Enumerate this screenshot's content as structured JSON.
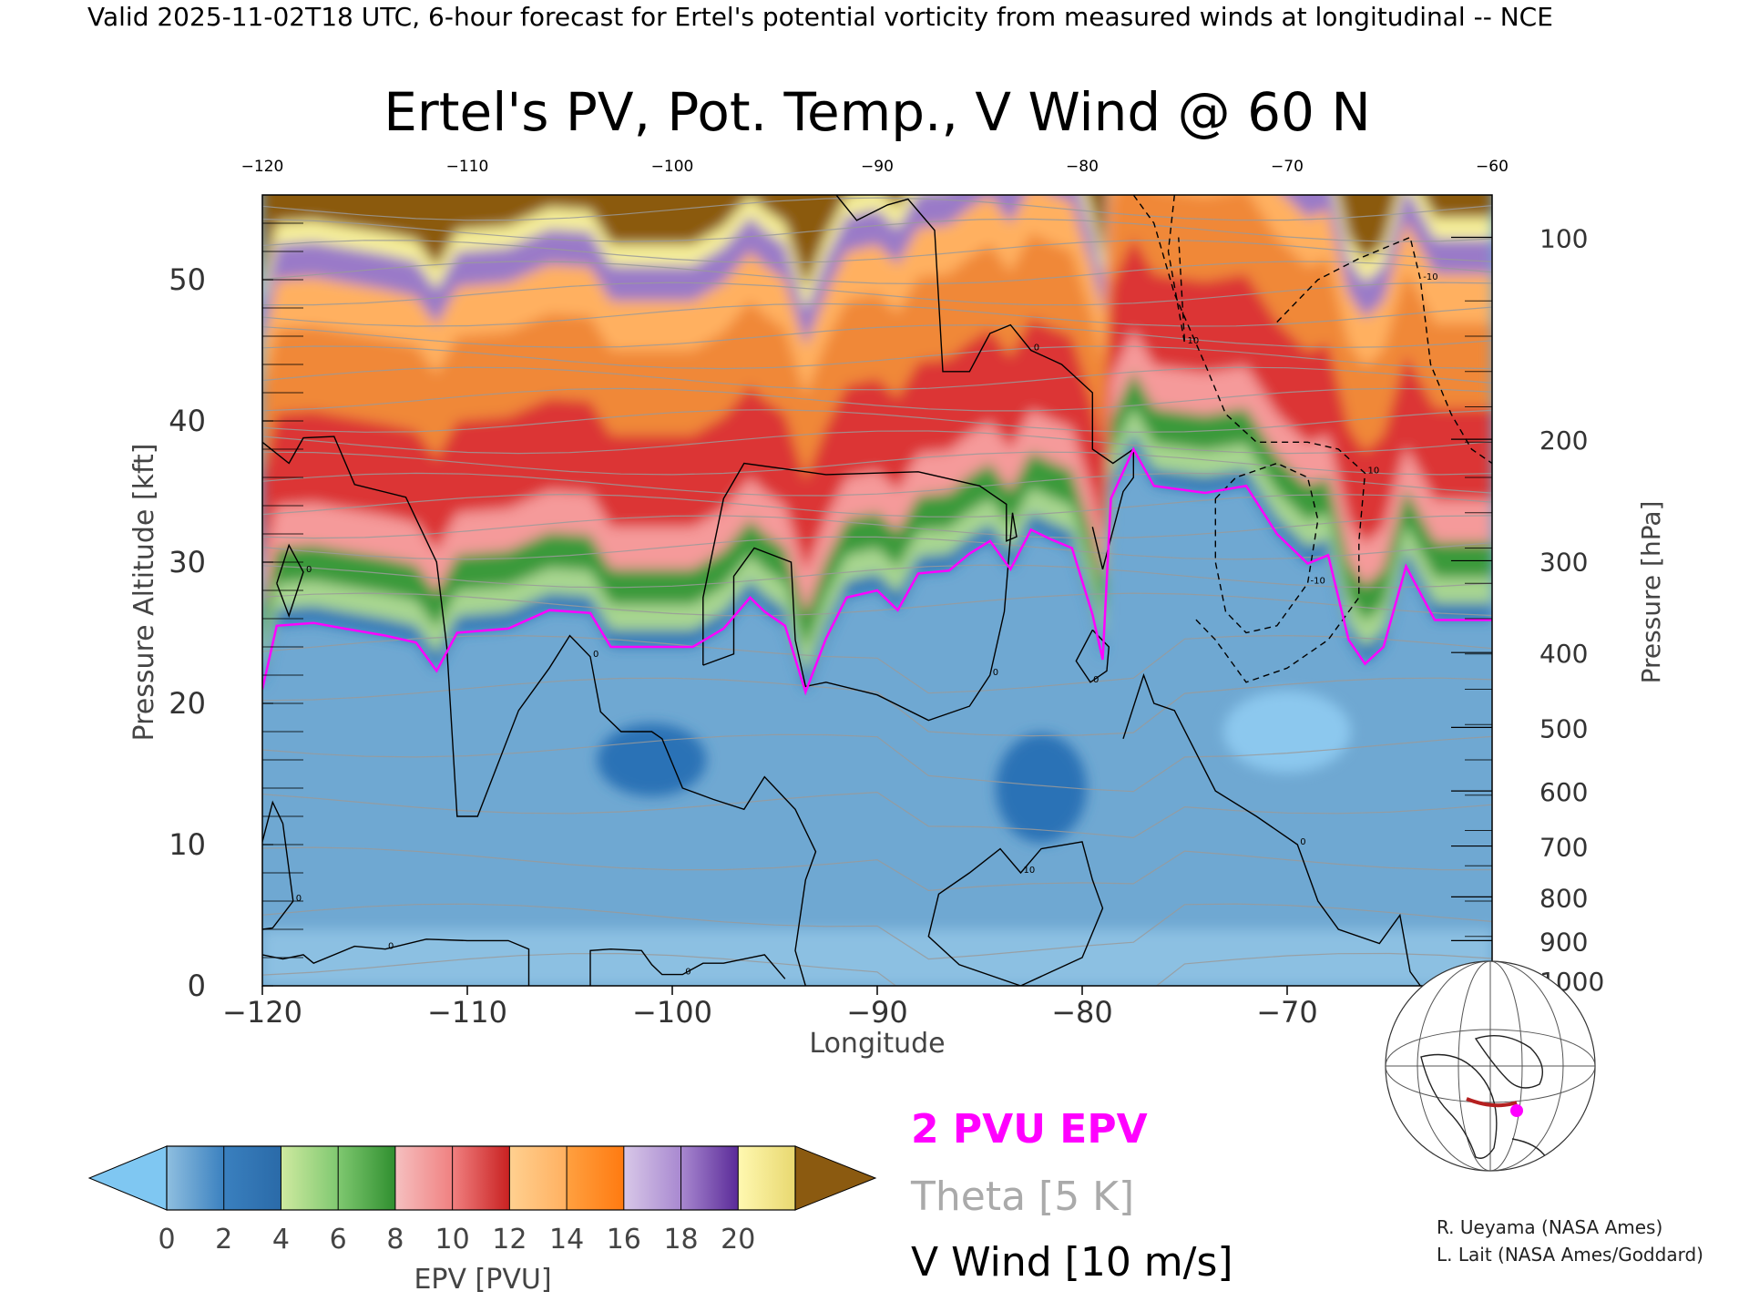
{
  "header_text": "Valid 2025-11-02T18 UTC, 6-hour forecast for Ertel's potential vorticity from measured winds at longitudinal -- NCE",
  "chart_data": {
    "type": "heatmap",
    "title": "Ertel's PV, Pot. Temp., V Wind @ 60 N",
    "xlabel": "Longitude",
    "ylabel_left": "Pressure Altitude [kft]",
    "ylabel_right": "Pressure [hPa]",
    "xlim": [
      -120,
      -60
    ],
    "ylim_kft": [
      0,
      56
    ],
    "x_ticks": [
      "-120",
      "-110",
      "-100",
      "-90",
      "-80",
      "-70",
      "-60"
    ],
    "x_top_ticks": [
      "-120",
      "-110",
      "-100",
      "-90",
      "-80",
      "-70",
      "-60"
    ],
    "y_left_ticks": [
      "0",
      "10",
      "20",
      "30",
      "40",
      "50"
    ],
    "y_right_ticks": [
      {
        "label": "100",
        "kft": 53
      },
      {
        "label": "200",
        "kft": 38.7
      },
      {
        "label": "300",
        "kft": 30.1
      },
      {
        "label": "400",
        "kft": 23.6
      },
      {
        "label": "500",
        "kft": 18.3
      },
      {
        "label": "600",
        "kft": 13.8
      },
      {
        "label": "700",
        "kft": 9.9
      },
      {
        "label": "800",
        "kft": 6.3
      },
      {
        "label": "900",
        "kft": 3.2
      },
      {
        "label": "1000",
        "kft": 0.4
      }
    ],
    "colorbar": {
      "label": "EPV [PVU]",
      "ticks": [
        "0",
        "2",
        "4",
        "6",
        "8",
        "10",
        "12",
        "14",
        "16",
        "18",
        "20"
      ],
      "under_color": "#7fc7f2",
      "over_color": "#8b5a10",
      "colors": [
        "#8fbfe0",
        "#3a80bf",
        "#9fd08a",
        "#3a9a3a",
        "#f5a0a0",
        "#d83030",
        "#ffb060",
        "#ff8a20",
        "#c0a8d8",
        "#6a3aa8",
        "#f7f09a"
      ]
    },
    "tropopause_2pvu_kft": [
      [
        -120,
        21
      ],
      [
        -119.3,
        25.5
      ],
      [
        -117.5,
        25.7
      ],
      [
        -116,
        25.3
      ],
      [
        -114,
        24.8
      ],
      [
        -112.5,
        24.3
      ],
      [
        -111.5,
        22.3
      ],
      [
        -110.5,
        25.0
      ],
      [
        -108,
        25.3
      ],
      [
        -106,
        26.6
      ],
      [
        -104,
        26.4
      ],
      [
        -103,
        24.0
      ],
      [
        -99,
        24.0
      ],
      [
        -97.5,
        25.3
      ],
      [
        -96.2,
        27.5
      ],
      [
        -95.5,
        26.5
      ],
      [
        -94.5,
        25.5
      ],
      [
        -93.5,
        20.8
      ],
      [
        -92.5,
        24.6
      ],
      [
        -91.5,
        27.5
      ],
      [
        -90,
        28.0
      ],
      [
        -89,
        26.6
      ],
      [
        -88,
        29.2
      ],
      [
        -86.5,
        29.4
      ],
      [
        -85.5,
        30.6
      ],
      [
        -84.5,
        31.5
      ],
      [
        -83.5,
        29.5
      ],
      [
        -82.5,
        32.3
      ],
      [
        -81.5,
        31.6
      ],
      [
        -80.5,
        31.0
      ],
      [
        -79.5,
        26.3
      ],
      [
        -79,
        23.1
      ],
      [
        -78.6,
        34.5
      ],
      [
        -77.5,
        38.0
      ],
      [
        -76.5,
        35.4
      ],
      [
        -74,
        34.9
      ],
      [
        -72,
        35.4
      ],
      [
        -70.5,
        32.0
      ],
      [
        -69,
        29.9
      ],
      [
        -68,
        30.5
      ],
      [
        -67,
        24.5
      ],
      [
        -66.2,
        22.8
      ],
      [
        -65.3,
        24.0
      ],
      [
        -64.2,
        29.7
      ],
      [
        -62.8,
        25.9
      ],
      [
        -60,
        25.9
      ]
    ],
    "wind_contours": [
      {
        "label": "0",
        "style": "solid",
        "points": [
          [
            -120,
            38.5
          ],
          [
            -118.7,
            37
          ],
          [
            -118,
            38.8
          ],
          [
            -116.5,
            38.9
          ],
          [
            -115.5,
            35.5
          ],
          [
            -113,
            34.6
          ],
          [
            -111.5,
            30
          ],
          [
            -111,
            24
          ],
          [
            -110.5,
            12
          ],
          [
            -109.5,
            12
          ],
          [
            -107.5,
            19.5
          ],
          [
            -106,
            22.5
          ],
          [
            -105,
            24.8
          ],
          [
            -104,
            23.3
          ],
          [
            -103.5,
            19.4
          ],
          [
            -102.5,
            18
          ],
          [
            -101,
            18
          ],
          [
            -100.5,
            17.5
          ],
          [
            -99.5,
            14
          ],
          [
            -98,
            13.2
          ],
          [
            -96.5,
            12.5
          ],
          [
            -95.5,
            14.8
          ],
          [
            -94,
            12.5
          ],
          [
            -93,
            9.5
          ],
          [
            -93.5,
            7.5
          ],
          [
            -94,
            2.5
          ],
          [
            -93.5,
            0
          ]
        ]
      },
      {
        "label": "0",
        "style": "solid",
        "points": [
          [
            -98.5,
            22.7
          ],
          [
            -98.5,
            27.5
          ],
          [
            -97.5,
            34.5
          ],
          [
            -96.5,
            37
          ],
          [
            -92.5,
            36.2
          ],
          [
            -88,
            36.4
          ],
          [
            -85,
            35.4
          ],
          [
            -83.7,
            34.1
          ],
          [
            -83.7,
            31.5
          ],
          [
            -83.2,
            31.8
          ],
          [
            -83.4,
            33.5
          ],
          [
            -83.8,
            26.5
          ],
          [
            -84.5,
            22
          ],
          [
            -85.5,
            19.8
          ],
          [
            -87.5,
            18.8
          ],
          [
            -90,
            20.6
          ],
          [
            -92.5,
            21.5
          ],
          [
            -93.5,
            21.2
          ],
          [
            -94,
            24.5
          ],
          [
            -94.2,
            30
          ],
          [
            -96,
            31
          ],
          [
            -97,
            29
          ],
          [
            -97,
            23.5
          ],
          [
            -98.5,
            22.7
          ]
        ]
      },
      {
        "label": "0",
        "style": "solid",
        "points": [
          [
            -92,
            56
          ],
          [
            -91,
            54.2
          ],
          [
            -89.5,
            55.3
          ],
          [
            -88.5,
            55.7
          ],
          [
            -87.2,
            53.5
          ],
          [
            -86.8,
            43.5
          ],
          [
            -85.5,
            43.5
          ],
          [
            -84.5,
            46.2
          ],
          [
            -83.5,
            46.8
          ],
          [
            -82.5,
            45
          ],
          [
            -81,
            44
          ],
          [
            -79.5,
            42
          ],
          [
            -79.5,
            38
          ],
          [
            -78.5,
            37
          ],
          [
            -77.5,
            38
          ],
          [
            -77.5,
            36
          ],
          [
            -78,
            35
          ],
          [
            -79,
            29.5
          ],
          [
            -79.5,
            32.5
          ]
        ]
      },
      {
        "label": "0",
        "style": "solid",
        "points": [
          [
            -78,
            17.5
          ],
          [
            -77,
            22
          ],
          [
            -76.5,
            20
          ],
          [
            -75.5,
            19.5
          ],
          [
            -73.5,
            13.8
          ],
          [
            -71.5,
            12
          ],
          [
            -69.5,
            10
          ],
          [
            -68.5,
            6
          ],
          [
            -67.5,
            4
          ],
          [
            -65.5,
            3
          ],
          [
            -64.5,
            5
          ],
          [
            -64,
            1
          ],
          [
            -63.5,
            0
          ]
        ]
      },
      {
        "label": "0",
        "style": "solid",
        "points": [
          [
            -79.5,
            25.2
          ],
          [
            -78.7,
            24
          ],
          [
            -78.8,
            22.3
          ],
          [
            -79.6,
            21.5
          ],
          [
            -80.3,
            23
          ],
          [
            -79.5,
            25.2
          ]
        ]
      },
      {
        "label": "0",
        "style": "solid",
        "points": [
          [
            -120,
            2.2
          ],
          [
            -119,
            1.9
          ],
          [
            -118,
            2.2
          ],
          [
            -117.5,
            1.6
          ],
          [
            -115.5,
            2.8
          ],
          [
            -114,
            2.6
          ],
          [
            -112,
            3.3
          ],
          [
            -110,
            3.2
          ],
          [
            -108,
            3.2
          ],
          [
            -107,
            2.6
          ],
          [
            -107,
            0
          ]
        ]
      },
      {
        "label": "0",
        "style": "solid",
        "points": [
          [
            -104,
            0
          ],
          [
            -104,
            2.5
          ],
          [
            -103,
            2.6
          ],
          [
            -101.5,
            2.5
          ],
          [
            -101,
            1.5
          ],
          [
            -100.5,
            0.8
          ],
          [
            -99.5,
            0.8
          ],
          [
            -99,
            1.2
          ],
          [
            -98.5,
            1.6
          ],
          [
            -97.5,
            1.6
          ],
          [
            -95.5,
            2.2
          ],
          [
            -94.5,
            0.5
          ]
        ]
      },
      {
        "label": "0",
        "style": "solid",
        "points": [
          [
            -120,
            10.2
          ],
          [
            -119.5,
            13
          ],
          [
            -119,
            11.5
          ],
          [
            -118.5,
            6
          ],
          [
            -119.5,
            4.1
          ],
          [
            -120,
            4
          ]
        ]
      },
      {
        "label": "0",
        "style": "solid",
        "points": [
          [
            -119.3,
            28.5
          ],
          [
            -118.7,
            31.2
          ],
          [
            -118,
            29.3
          ],
          [
            -118.7,
            26.2
          ],
          [
            -119.3,
            28.5
          ]
        ]
      },
      {
        "label": "10",
        "style": "solid",
        "points": [
          [
            -83,
            0
          ],
          [
            -86,
            1.5
          ],
          [
            -87.5,
            3.5
          ],
          [
            -87,
            6.5
          ],
          [
            -85.5,
            8
          ],
          [
            -84,
            9.7
          ],
          [
            -83,
            8
          ],
          [
            -82,
            9.7
          ],
          [
            -80,
            10.2
          ],
          [
            -79.5,
            7.5
          ],
          [
            -79,
            5.5
          ],
          [
            -80,
            2
          ],
          [
            -83,
            0
          ]
        ]
      },
      {
        "label": "10",
        "style": "dashed",
        "points": [
          [
            -77.5,
            56
          ],
          [
            -76.5,
            54
          ],
          [
            -75.5,
            49
          ],
          [
            -74,
            44
          ],
          [
            -73,
            40.5
          ],
          [
            -71.5,
            38.5
          ],
          [
            -69,
            38.5
          ],
          [
            -67.5,
            38
          ],
          [
            -66.2,
            36.3
          ],
          [
            -66.5,
            31.5
          ],
          [
            -66.5,
            27.5
          ],
          [
            -68,
            24.5
          ],
          [
            -70,
            22.5
          ],
          [
            -72,
            21.5
          ],
          [
            -73.5,
            24.5
          ],
          [
            -74.5,
            26
          ]
        ]
      },
      {
        "label": "-10",
        "style": "dashed",
        "points": [
          [
            -73.5,
            34.5
          ],
          [
            -72.5,
            36
          ],
          [
            -70.5,
            37
          ],
          [
            -69,
            36
          ],
          [
            -68.5,
            33
          ],
          [
            -69,
            28.5
          ],
          [
            -70.5,
            25.5
          ],
          [
            -72,
            25
          ],
          [
            -73,
            26.5
          ],
          [
            -73.5,
            30
          ],
          [
            -73.5,
            34.5
          ]
        ]
      },
      {
        "label": "-10",
        "style": "dashed",
        "points": [
          [
            -70.5,
            47
          ],
          [
            -68.5,
            50
          ],
          [
            -66.5,
            51.5
          ],
          [
            -64,
            53
          ],
          [
            -63.5,
            50
          ],
          [
            -63,
            44
          ],
          [
            -62,
            40.5
          ],
          [
            -61,
            38
          ],
          [
            -60,
            37
          ]
        ]
      },
      {
        "label": "10",
        "style": "dashed",
        "points": [
          [
            -75.5,
            56
          ],
          [
            -75.8,
            52
          ],
          [
            -75,
            45.5
          ],
          [
            -75.3,
            53
          ]
        ]
      }
    ],
    "theta_levels_K": [
      "290",
      "300",
      "320",
      "340",
      "360",
      "370",
      "380",
      "390",
      "400"
    ]
  },
  "legend": {
    "epv_label": "2 PVU EPV",
    "epv_color": "#ff00ff",
    "theta_label": "Theta [5 K]",
    "theta_color": "#aaaaaa",
    "wind_label": "V Wind [10 m/s]",
    "wind_color": "#000000"
  },
  "inset_map": {
    "description_icon": "globe-map-icon",
    "track_color": "#b52020",
    "marker_color": "#ff00ff"
  },
  "credits": [
    "R. Ueyama (NASA Ames)",
    "L. Lait (NASA Ames/Goddard)"
  ]
}
